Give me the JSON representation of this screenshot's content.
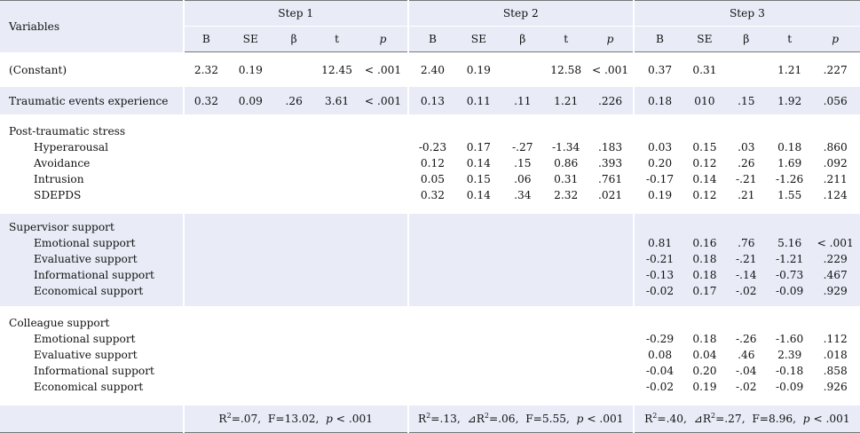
{
  "table": {
    "variables_header": "Variables",
    "steps": [
      "Step 1",
      "Step 2",
      "Step 3"
    ],
    "subcolumns": [
      "B",
      "SE",
      "β",
      "t",
      "p"
    ],
    "rows": {
      "constant": {
        "label": "(Constant)",
        "values": [
          "2.32",
          "0.19",
          "",
          "12.45",
          "< .001",
          "2.40",
          "0.19",
          "",
          "12.58",
          "< .001",
          "0.37",
          "0.31",
          "",
          "1.21",
          ".227"
        ]
      },
      "trauma": {
        "label": "Traumatic events experience",
        "values": [
          "0.32",
          "0.09",
          ".26",
          "3.61",
          "< .001",
          "0.13",
          "0.11",
          ".11",
          "1.21",
          ".226",
          "0.18",
          "010",
          ".15",
          "1.92",
          ".056"
        ]
      }
    },
    "groups": {
      "pts": {
        "title": "Post-traumatic stress",
        "items": [
          {
            "label": "Hyperarousal",
            "values": [
              "",
              "",
              "",
              "",
              "",
              "-0.23",
              "0.17",
              "-.27",
              "-1.34",
              ".183",
              "0.03",
              "0.15",
              ".03",
              "0.18",
              ".860"
            ]
          },
          {
            "label": "Avoidance",
            "values": [
              "",
              "",
              "",
              "",
              "",
              "0.12",
              "0.14",
              ".15",
              "0.86",
              ".393",
              "0.20",
              "0.12",
              ".26",
              "1.69",
              ".092"
            ]
          },
          {
            "label": "Intrusion",
            "values": [
              "",
              "",
              "",
              "",
              "",
              "0.05",
              "0.15",
              ".06",
              "0.31",
              ".761",
              "-0.17",
              "0.14",
              "-.21",
              "-1.26",
              ".211"
            ]
          },
          {
            "label": "SDEPDS",
            "values": [
              "",
              "",
              "",
              "",
              "",
              "0.32",
              "0.14",
              ".34",
              "2.32",
              ".021",
              "0.19",
              "0.12",
              ".21",
              "1.55",
              ".124"
            ]
          }
        ]
      },
      "supervisor": {
        "title": "Supervisor support",
        "items": [
          {
            "label": "Emotional support",
            "values": [
              "",
              "",
              "",
              "",
              "",
              "",
              "",
              "",
              "",
              "",
              "0.81",
              "0.16",
              ".76",
              "5.16",
              "< .001"
            ]
          },
          {
            "label": "Evaluative support",
            "values": [
              "",
              "",
              "",
              "",
              "",
              "",
              "",
              "",
              "",
              "",
              "-0.21",
              "0.18",
              "-.21",
              "-1.21",
              ".229"
            ]
          },
          {
            "label": "Informational support",
            "values": [
              "",
              "",
              "",
              "",
              "",
              "",
              "",
              "",
              "",
              "",
              "-0.13",
              "0.18",
              "-.14",
              "-0.73",
              ".467"
            ]
          },
          {
            "label": "Economical support",
            "values": [
              "",
              "",
              "",
              "",
              "",
              "",
              "",
              "",
              "",
              "",
              "-0.02",
              "0.17",
              "-.02",
              "-0.09",
              ".929"
            ]
          }
        ]
      },
      "colleague": {
        "title": "Colleague support",
        "items": [
          {
            "label": "Emotional support",
            "values": [
              "",
              "",
              "",
              "",
              "",
              "",
              "",
              "",
              "",
              "",
              "-0.29",
              "0.18",
              "-.26",
              "-1.60",
              ".112"
            ]
          },
          {
            "label": "Evaluative support",
            "values": [
              "",
              "",
              "",
              "",
              "",
              "",
              "",
              "",
              "",
              "",
              "0.08",
              "0.04",
              ".46",
              "2.39",
              ".018"
            ]
          },
          {
            "label": "Informational support",
            "values": [
              "",
              "",
              "",
              "",
              "",
              "",
              "",
              "",
              "",
              "",
              "-0.04",
              "0.20",
              "-.04",
              "-0.18",
              ".858"
            ]
          },
          {
            "label": "Economical support",
            "values": [
              "",
              "",
              "",
              "",
              "",
              "",
              "",
              "",
              "",
              "",
              "-0.02",
              "0.19",
              "-.02",
              "-0.09",
              ".926"
            ]
          }
        ]
      }
    },
    "summary": [
      {
        "r2": "=.07,",
        "dr2": "",
        "f": "F=13.02,",
        "p": "< .001"
      },
      {
        "r2": "=.13,",
        "dr2": "=.06,",
        "f": "F=5.55,",
        "p": "< .001"
      },
      {
        "r2": "=.40,",
        "dr2": "=.27,",
        "f": "F=8.96,",
        "p": "< .001"
      }
    ],
    "summary_symbols": {
      "r": "R",
      "sq": "2",
      "delta": "⊿",
      "p": "p"
    },
    "colors": {
      "shade": "#e9ecf7",
      "rule": "#777777",
      "text": "#111111"
    }
  }
}
